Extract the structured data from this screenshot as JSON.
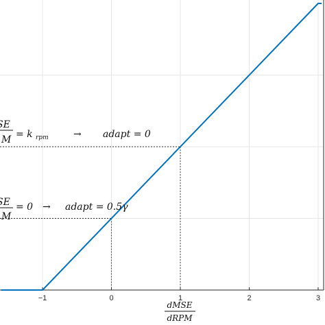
{
  "chart_data": {
    "type": "line",
    "title": "",
    "xlabel_numerator": "dMSE",
    "xlabel_denominator": "dRPM",
    "ylabel": "",
    "xlim": [
      -1.6,
      3.05
    ],
    "ylim": [
      -0.25,
      1.76
    ],
    "grid": true,
    "xticks": [
      -1,
      0,
      1,
      2,
      3
    ],
    "xtick_labels": [
      "−1",
      "0",
      "1",
      "2",
      "3"
    ],
    "yticks": [
      0.25,
      0.75,
      1.25
    ],
    "series": [
      {
        "color": "#0072bd",
        "x": [
          -1.6,
          -1,
          3,
          3.05
        ],
        "y": [
          -0.25,
          -0.25,
          1.75,
          1.75
        ]
      }
    ],
    "reference_points": [
      {
        "x": 0,
        "y": 0.25
      },
      {
        "x": 1,
        "y": 0.75
      }
    ],
    "annotations": [
      {
        "frac_num": "SE",
        "frac_den": "M",
        "equation": "= k",
        "subscript": "rpm",
        "arrow": "→",
        "result": "adapt = 0"
      },
      {
        "frac_num": "SE",
        "frac_den": "M",
        "equation": "= 0",
        "arrow": "→",
        "result": "adapt = 0.5γ"
      }
    ]
  }
}
